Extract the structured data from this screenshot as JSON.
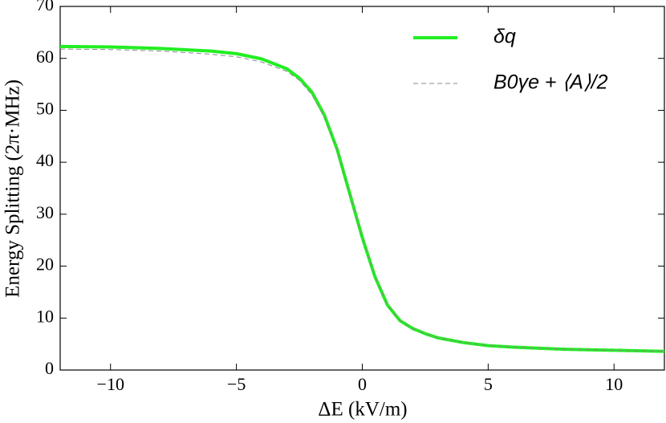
{
  "chart_data": {
    "type": "line",
    "x_label": "ΔE (kV/m)",
    "y_label": "Energy  Splitting  (2π·MHz)",
    "x": [
      -12,
      -10,
      -8,
      -6,
      -5,
      -4,
      -3,
      -2.5,
      -2,
      -1.5,
      -1,
      -0.5,
      0,
      0.5,
      1,
      1.5,
      2,
      2.5,
      3,
      4,
      5,
      6,
      8,
      10,
      12
    ],
    "series": [
      {
        "name": "δq",
        "color": "#22ee22",
        "dash": false,
        "values": [
          62.3,
          62.2,
          61.9,
          61.4,
          60.9,
          59.9,
          58.0,
          56.2,
          53.5,
          49.0,
          42.5,
          34.0,
          25.5,
          18.0,
          12.5,
          9.5,
          8.0,
          7.0,
          6.2,
          5.3,
          4.7,
          4.4,
          4.0,
          3.8,
          3.6
        ]
      },
      {
        "name": "B0γe + ⟨A⟩/2",
        "color": "#888888",
        "dash": true,
        "values": [
          61.8,
          61.7,
          61.4,
          60.8,
          60.3,
          59.3,
          57.5,
          55.8,
          53.0,
          48.7,
          42.3,
          33.9,
          25.5,
          18.0,
          12.5,
          9.5,
          8.0,
          7.0,
          6.2,
          5.3,
          4.7,
          4.4,
          4.0,
          3.8,
          3.6
        ]
      }
    ],
    "xlim": [
      -12,
      12
    ],
    "ylim": [
      0,
      70
    ],
    "xticks": [
      {
        "value": -10,
        "label": "−10"
      },
      {
        "value": -5,
        "label": "−5"
      },
      0,
      5,
      10
    ],
    "yticks": [
      0,
      10,
      20,
      30,
      40,
      50,
      60,
      70
    ],
    "legend": "top-right"
  }
}
